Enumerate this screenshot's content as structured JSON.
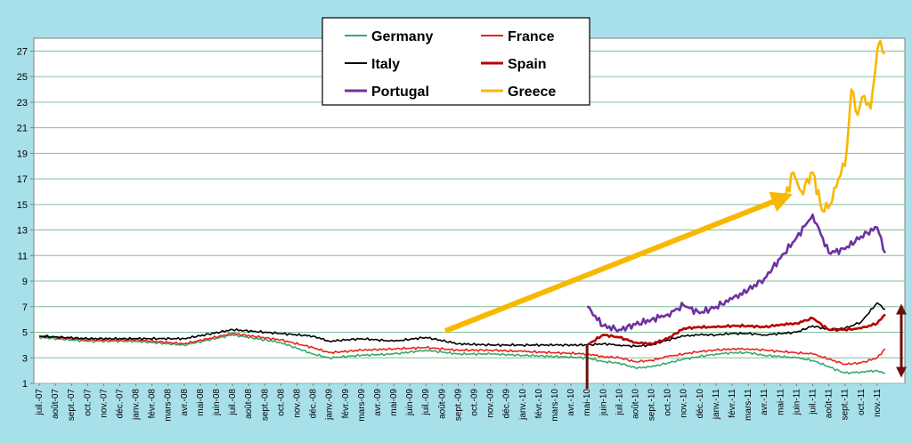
{
  "chart_data": {
    "type": "line",
    "title": "",
    "xlabel": "",
    "ylabel": "",
    "ylim": [
      1,
      28
    ],
    "y_ticks": [
      1,
      3,
      5,
      7,
      9,
      11,
      13,
      15,
      17,
      19,
      21,
      23,
      25,
      27
    ],
    "grid": "horizontal",
    "legend_position": "top-center",
    "x_tick_labels": [
      "juil.-07",
      "août-07",
      "sept.-07",
      "oct.-07",
      "nov.-07",
      "déc.-07",
      "janv.-08",
      "févr.-08",
      "mars-08",
      "avr.-08",
      "mai-08",
      "juin-08",
      "juil.-08",
      "août-08",
      "sept.-08",
      "oct.-08",
      "nov.-08",
      "déc.-08",
      "janv.-09",
      "févr.-09",
      "mars-09",
      "avr.-09",
      "mai-09",
      "juin-09",
      "juil.-09",
      "août-09",
      "sept.-09",
      "oct.-09",
      "nov.-09",
      "déc.-09",
      "janv.-10",
      "févr.-10",
      "mars-10",
      "avr.-10",
      "mai-10",
      "juin-10",
      "juil.-10",
      "août-10",
      "sept.-10",
      "oct.-10",
      "nov.-10",
      "déc.-10",
      "janv.-11",
      "févr.-11",
      "mars-11",
      "avr.-11",
      "mai-11",
      "juin-11",
      "juil.-11",
      "août-11",
      "sept.-11",
      "oct.-11",
      "nov.-11"
    ],
    "series": [
      {
        "name": "Germany",
        "color": "#3aa86e",
        "x": [
          0,
          3,
          6,
          9,
          12,
          15,
          17,
          18,
          20,
          22,
          24,
          26,
          28,
          30,
          32,
          34,
          35,
          36,
          37,
          38,
          39,
          40,
          41,
          42,
          43,
          44,
          45,
          46,
          47,
          48,
          49,
          50,
          51,
          52,
          52.5
        ],
        "y": [
          4.6,
          4.3,
          4.3,
          4.0,
          4.8,
          4.2,
          3.3,
          3.0,
          3.2,
          3.3,
          3.6,
          3.3,
          3.3,
          3.2,
          3.1,
          3.0,
          2.7,
          2.6,
          2.2,
          2.3,
          2.6,
          2.9,
          3.1,
          3.3,
          3.4,
          3.4,
          3.2,
          3.1,
          3.0,
          2.8,
          2.3,
          1.8,
          1.9,
          2.0,
          1.8
        ]
      },
      {
        "name": "France",
        "color": "#e8241c",
        "x": [
          0,
          3,
          6,
          9,
          12,
          15,
          17,
          18,
          20,
          22,
          24,
          26,
          28,
          30,
          32,
          34,
          35,
          36,
          37,
          38,
          39,
          40,
          41,
          42,
          43,
          44,
          45,
          46,
          47,
          48,
          49,
          50,
          51,
          52,
          52.5
        ],
        "y": [
          4.7,
          4.4,
          4.4,
          4.1,
          4.9,
          4.4,
          3.8,
          3.4,
          3.6,
          3.7,
          3.8,
          3.6,
          3.6,
          3.5,
          3.4,
          3.3,
          3.1,
          3.0,
          2.7,
          2.8,
          3.1,
          3.3,
          3.5,
          3.6,
          3.7,
          3.7,
          3.6,
          3.5,
          3.4,
          3.3,
          2.9,
          2.5,
          2.6,
          3.0,
          3.7
        ]
      },
      {
        "name": "Italy",
        "color": "#000000",
        "x": [
          0,
          3,
          6,
          9,
          12,
          15,
          17,
          18,
          20,
          22,
          24,
          26,
          28,
          30,
          32,
          34,
          35,
          36,
          37,
          38,
          39,
          40,
          41,
          42,
          43,
          44,
          45,
          46,
          47,
          48,
          49,
          50,
          51,
          52,
          52.5
        ],
        "y": [
          4.7,
          4.5,
          4.5,
          4.5,
          5.2,
          4.9,
          4.7,
          4.3,
          4.5,
          4.3,
          4.6,
          4.1,
          4.0,
          4.0,
          4.0,
          4.0,
          4.1,
          4.0,
          3.9,
          4.0,
          4.4,
          4.7,
          4.8,
          4.8,
          4.9,
          4.9,
          4.8,
          4.9,
          5.0,
          5.5,
          5.2,
          5.3,
          5.8,
          7.3,
          6.8
        ]
      },
      {
        "name": "Spain",
        "color": "#b80000",
        "x": [
          34,
          35,
          36,
          37,
          38,
          39,
          40,
          41,
          42,
          43,
          44,
          45,
          46,
          47,
          48,
          49,
          50,
          51,
          52,
          52.5
        ],
        "y": [
          4.0,
          4.8,
          4.6,
          4.2,
          4.1,
          4.5,
          5.3,
          5.4,
          5.4,
          5.5,
          5.5,
          5.4,
          5.6,
          5.7,
          6.1,
          5.2,
          5.2,
          5.3,
          5.7,
          6.4
        ]
      },
      {
        "name": "Portugal",
        "color": "#7030a0",
        "x": [
          34,
          35,
          36,
          37,
          38,
          39,
          40,
          41,
          42,
          43,
          44,
          45,
          46,
          47,
          48,
          49,
          50,
          51,
          52,
          52.5
        ],
        "y": [
          7.0,
          5.5,
          5.2,
          5.6,
          6.0,
          6.4,
          7.1,
          6.5,
          7.0,
          7.6,
          8.3,
          9.2,
          10.8,
          12.4,
          14.2,
          11.2,
          11.5,
          12.5,
          13.2,
          11.2
        ]
      },
      {
        "name": "Greece",
        "color": "#f9b800",
        "x": [
          46.3,
          46.8,
          47.3,
          48,
          48.6,
          49.2,
          49.6,
          50,
          50.4,
          50.8,
          51.2,
          51.6,
          52,
          52.2,
          52.5
        ],
        "y": [
          15.6,
          17.5,
          16.0,
          17.5,
          14.5,
          15.2,
          17.0,
          18.0,
          24.0,
          22.0,
          23.5,
          22.5,
          27.0,
          27.8,
          26.8
        ]
      }
    ]
  }
}
